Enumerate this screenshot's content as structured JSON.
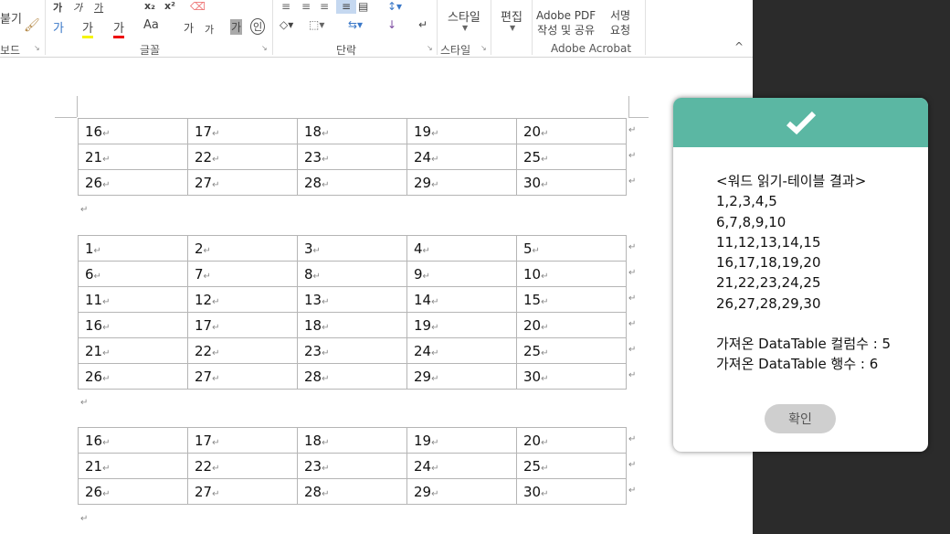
{
  "ribbon": {
    "clipboard": {
      "paste_label": "붙기",
      "group": "보드"
    },
    "font": {
      "group": "글꼴",
      "buttons": [
        "가",
        "가",
        "가",
        "x₂",
        "x²",
        "가",
        "가",
        "가",
        "Aa",
        "가",
        "가",
        "가",
        "인"
      ]
    },
    "paragraph": {
      "group": "단락"
    },
    "styles": {
      "button": "스타일",
      "group": "스타일"
    },
    "editing": {
      "button": "편집"
    },
    "acrobat": {
      "pdf_line1": "Adobe PDF",
      "pdf_line2": "작성 및 공유",
      "sign_line1": "서명",
      "sign_line2": "요청",
      "group": "Adobe Acrobat"
    },
    "collapse": "^"
  },
  "document": {
    "paragraph_mark": "↵",
    "tables": [
      {
        "rows": [
          [
            "16",
            "17",
            "18",
            "19",
            "20"
          ],
          [
            "21",
            "22",
            "23",
            "24",
            "25"
          ],
          [
            "26",
            "27",
            "28",
            "29",
            "30"
          ]
        ]
      },
      {
        "rows": [
          [
            "1",
            "2",
            "3",
            "4",
            "5"
          ],
          [
            "6",
            "7",
            "8",
            "9",
            "10"
          ],
          [
            "11",
            "12",
            "13",
            "14",
            "15"
          ],
          [
            "16",
            "17",
            "18",
            "19",
            "20"
          ],
          [
            "21",
            "22",
            "23",
            "24",
            "25"
          ],
          [
            "26",
            "27",
            "28",
            "29",
            "30"
          ]
        ]
      },
      {
        "rows": [
          [
            "16",
            "17",
            "18",
            "19",
            "20"
          ],
          [
            "21",
            "22",
            "23",
            "24",
            "25"
          ],
          [
            "26",
            "27",
            "28",
            "29",
            "30"
          ]
        ]
      }
    ]
  },
  "dialog": {
    "header_color": "#5bb7a3",
    "icon": "checkmark-icon",
    "lines": [
      "<워드 읽기-테이블 결과>",
      "1,2,3,4,5",
      "6,7,8,9,10",
      "11,12,13,14,15",
      "16,17,18,19,20",
      "21,22,23,24,25",
      "26,27,28,29,30",
      "",
      "가져온 DataTable 컬럼수 : 5",
      "가져온 DataTable 행수 : 6"
    ],
    "ok_label": "확인"
  }
}
